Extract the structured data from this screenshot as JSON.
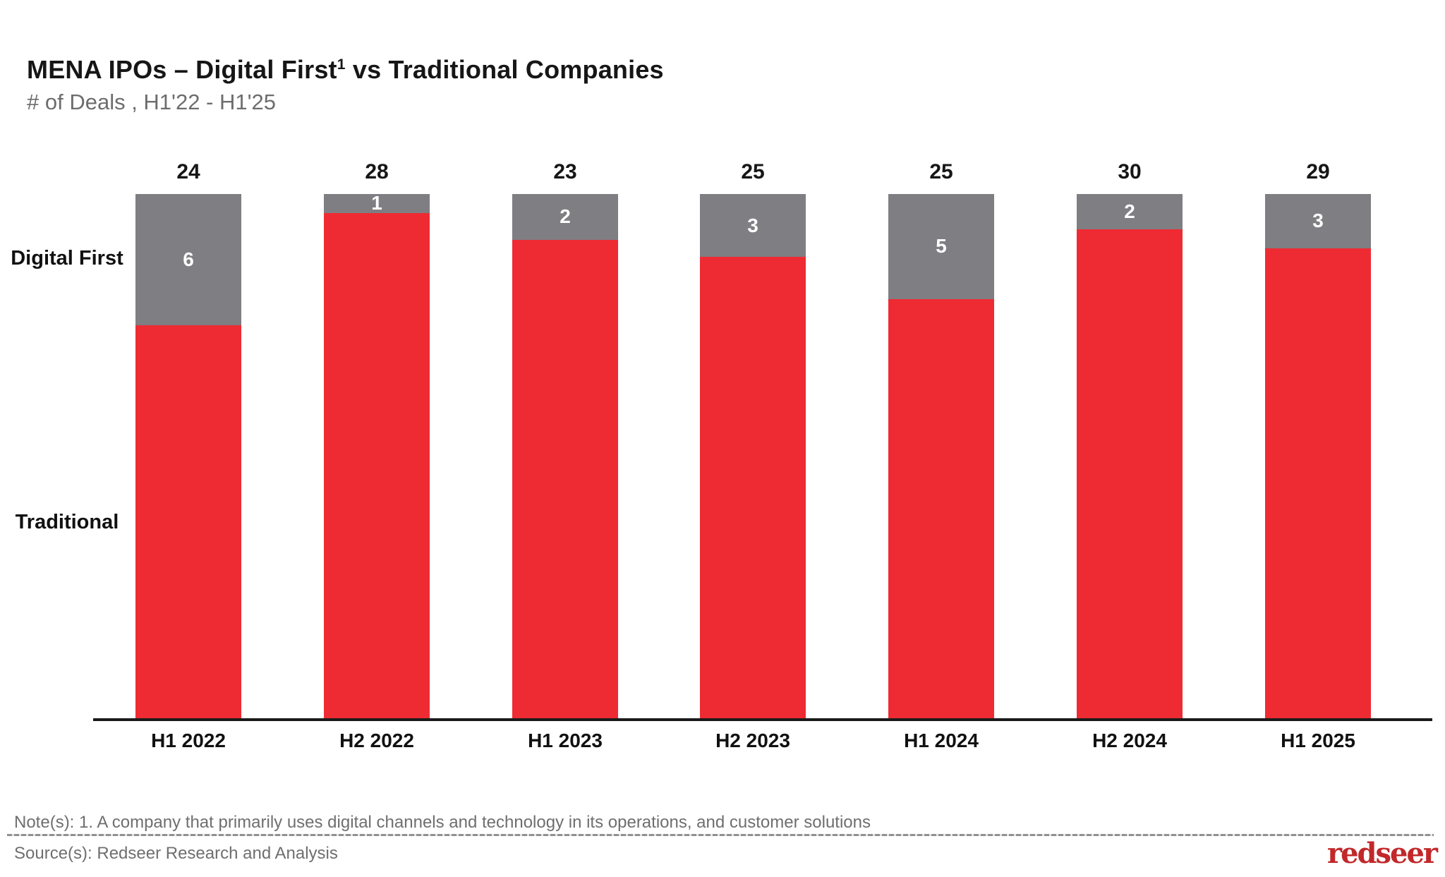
{
  "header": {
    "title_prefix": "MENA IPOs – Digital First",
    "title_superscript": "1",
    "title_suffix": " vs Traditional Companies",
    "subtitle": "# of Deals , H1'22 - H1'25"
  },
  "chart_data": {
    "type": "bar",
    "variant": "stacked, all bars drawn equal height (100% normalized) with count labels",
    "title": "MENA IPOs – Digital First vs Traditional Companies",
    "subtitle": "# of Deals , H1'22 - H1'25",
    "categories": [
      "H1 2022",
      "H2 2022",
      "H1 2023",
      "H2 2023",
      "H1 2024",
      "H2 2024",
      "H1 2025"
    ],
    "series": [
      {
        "name": "Digital First",
        "color": "#7E7E83",
        "values": [
          6,
          1,
          2,
          3,
          5,
          2,
          3
        ]
      },
      {
        "name": "Traditional",
        "color": "#EE2B33",
        "values": [
          18,
          27,
          21,
          22,
          20,
          28,
          26
        ]
      }
    ],
    "totals": [
      24,
      28,
      23,
      25,
      25,
      30,
      29
    ],
    "value_labels": {
      "totals_above_bars": true,
      "digital_first_inside_segment": true,
      "traditional_inside_segment": false
    },
    "grid": false,
    "legend_position": "left side labels aligned to first bar segments"
  },
  "side_labels": {
    "digital_first": "Digital First",
    "traditional": "Traditional"
  },
  "footer": {
    "note": "Note(s): 1. A company that primarily uses digital channels and technology in its operations, and customer solutions",
    "source": "Source(s): Redseer Research and Analysis",
    "logo_text": "redseer"
  },
  "colors": {
    "digital_first": "#7E7E83",
    "traditional": "#EE2B33",
    "axis": "#1A1A1A",
    "title_text": "#161616",
    "subtitle_text": "#6D6D6D",
    "footer_text": "#6F6F6F",
    "logo_red": "#C2282A"
  }
}
